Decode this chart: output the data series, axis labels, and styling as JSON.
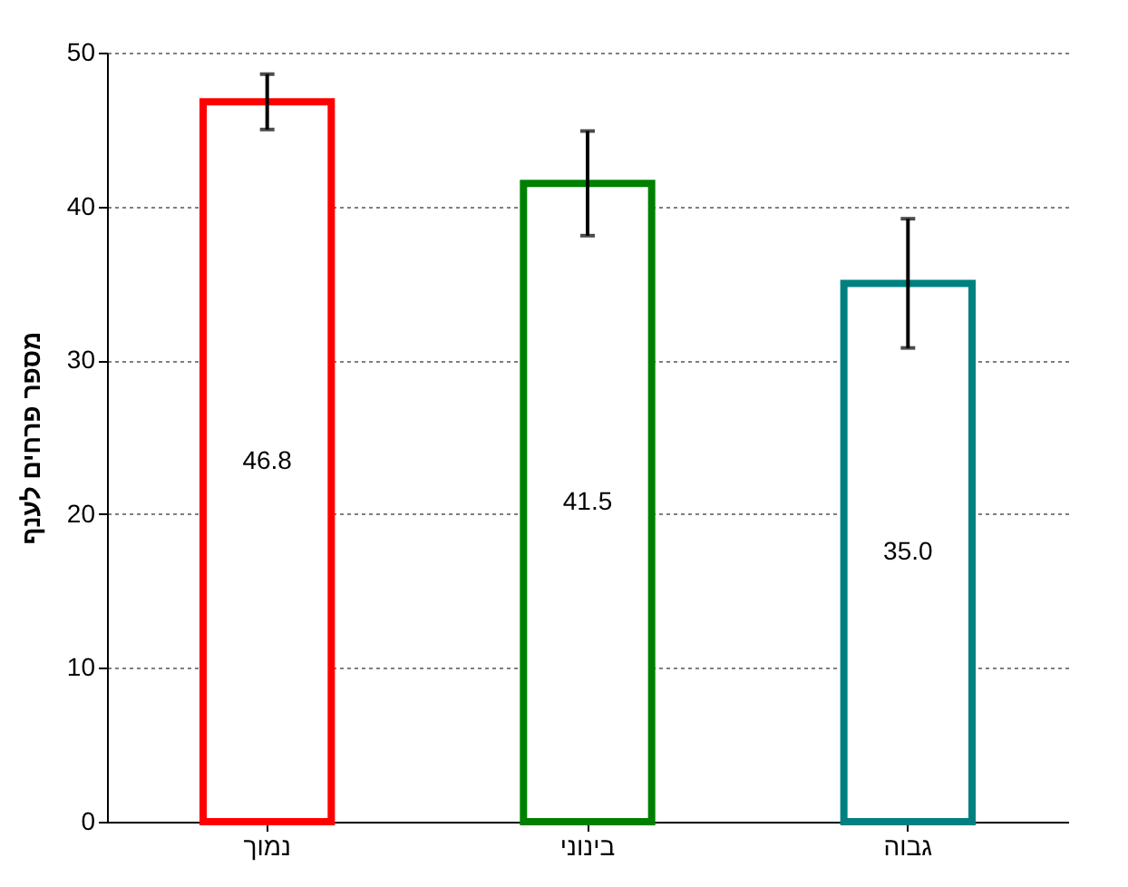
{
  "chart_data": {
    "type": "bar",
    "ylabel": "מספר פרחים לענף",
    "categories": [
      "נמוך",
      "בינוני",
      "גבוה"
    ],
    "values": [
      46.8,
      41.5,
      35.0
    ],
    "value_labels": [
      "46.8",
      "41.5",
      "35.0"
    ],
    "colors": [
      "#ff0000",
      "#008000",
      "#008080"
    ],
    "errors": [
      1.8,
      3.4,
      4.2
    ],
    "ylim": [
      0,
      50
    ],
    "yticks": [
      0,
      10,
      20,
      30,
      40,
      50
    ],
    "grid": "y"
  }
}
